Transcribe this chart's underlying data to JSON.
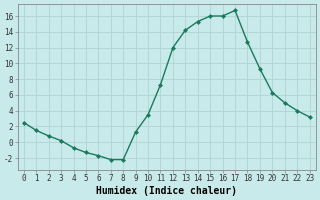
{
  "x": [
    0,
    1,
    2,
    3,
    4,
    5,
    6,
    7,
    8,
    9,
    10,
    11,
    12,
    13,
    14,
    15,
    16,
    17,
    18,
    19,
    20,
    21,
    22,
    23
  ],
  "y": [
    2.5,
    1.5,
    0.8,
    0.2,
    -0.7,
    -1.3,
    -1.7,
    -2.2,
    -2.2,
    1.3,
    3.5,
    7.3,
    12.0,
    14.2,
    15.3,
    16.0,
    16.0,
    16.7,
    12.7,
    9.3,
    6.3,
    5.0,
    4.0,
    3.2
  ],
  "line_color": "#1a7a5e",
  "marker": "D",
  "marker_size": 2.0,
  "line_width": 1.0,
  "bg_color": "#c8eaea",
  "grid_color": "#b0d4d4",
  "xlabel": "Humidex (Indice chaleur)",
  "xlim": [
    -0.5,
    23.5
  ],
  "ylim": [
    -3.5,
    17.5
  ],
  "yticks": [
    -2,
    0,
    2,
    4,
    6,
    8,
    10,
    12,
    14,
    16
  ],
  "xticks": [
    0,
    1,
    2,
    3,
    4,
    5,
    6,
    7,
    8,
    9,
    10,
    11,
    12,
    13,
    14,
    15,
    16,
    17,
    18,
    19,
    20,
    21,
    22,
    23
  ],
  "xtick_labels": [
    "0",
    "1",
    "2",
    "3",
    "4",
    "5",
    "6",
    "7",
    "8",
    "9",
    "10",
    "11",
    "12",
    "13",
    "14",
    "15",
    "16",
    "17",
    "18",
    "19",
    "20",
    "21",
    "22",
    "23"
  ],
  "tick_fontsize": 5.5,
  "xlabel_fontsize": 7.0
}
